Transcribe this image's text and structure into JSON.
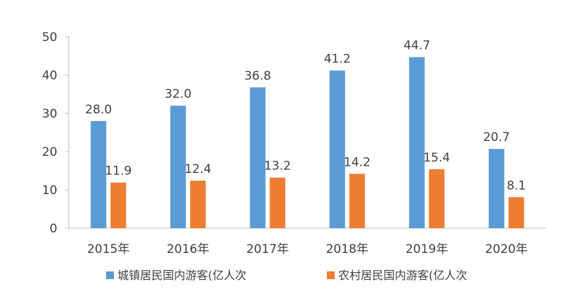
{
  "chart_data": {
    "type": "bar",
    "title": "",
    "xlabel": "",
    "ylabel": "",
    "ylim": [
      0,
      50
    ],
    "yticks": [
      0,
      10,
      20,
      30,
      40,
      50
    ],
    "grid": false,
    "legend_position": "bottom",
    "categories": [
      "2015年",
      "2016年",
      "2017年",
      "2018年",
      "2019年",
      "2020年"
    ],
    "series": [
      {
        "name": "城镇居民国内游客(亿人次",
        "color": "#5B9BD5",
        "values": [
          28.0,
          32.0,
          36.8,
          41.2,
          44.7,
          20.7
        ],
        "labels": [
          "28.0",
          "32.0",
          "36.8",
          "41.2",
          "44.7",
          "20.7"
        ]
      },
      {
        "name": "农村居民国内游客(亿人次",
        "color": "#ED7D31",
        "values": [
          11.9,
          12.4,
          13.2,
          14.2,
          15.4,
          8.1
        ],
        "labels": [
          "11.9",
          "12.4",
          "13.2",
          "14.2",
          "15.4",
          "8.1"
        ]
      }
    ]
  }
}
